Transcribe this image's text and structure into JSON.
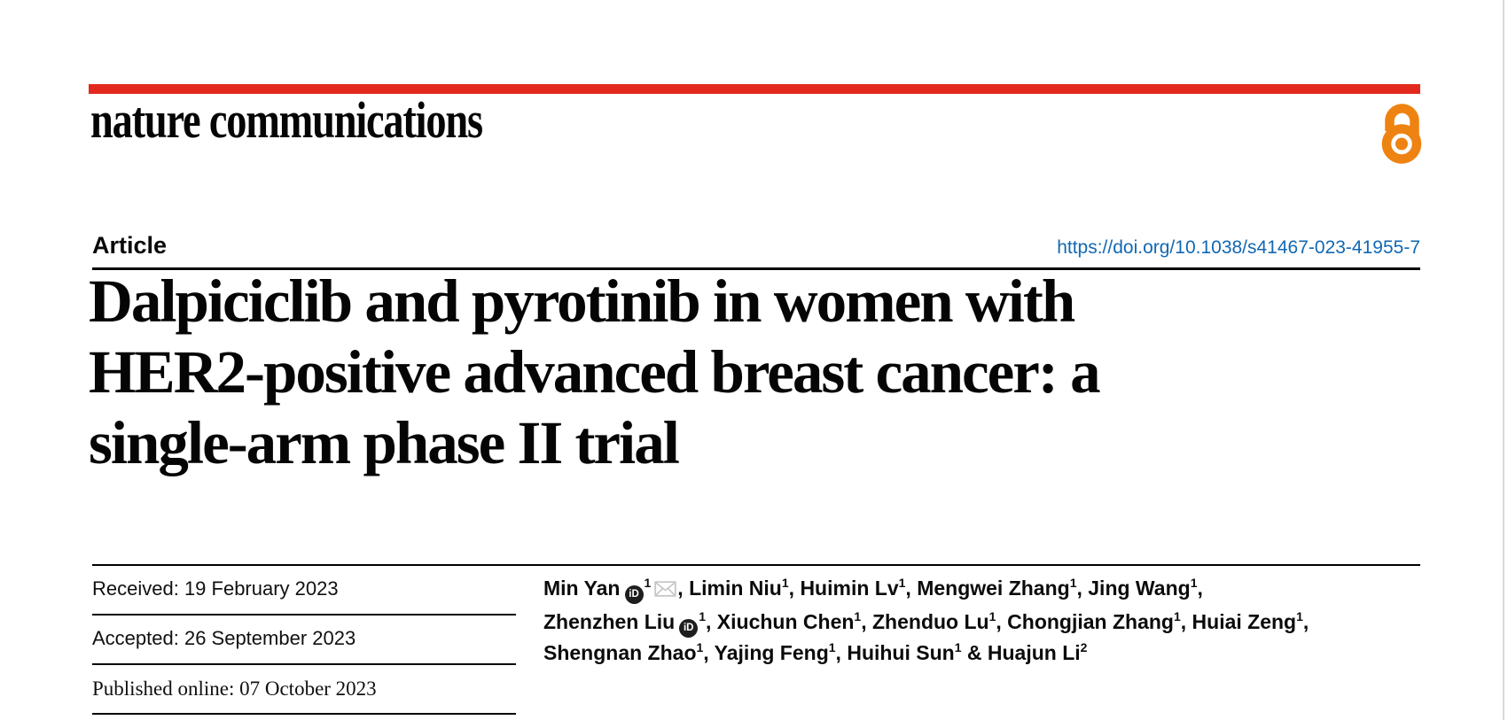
{
  "brand": {
    "logo_text": "nature communications",
    "bar_color": "#E3291D",
    "open_access_color": "#EE8312",
    "open_access_icon": "open-lock-icon"
  },
  "article": {
    "kicker": "Article",
    "doi": "https://doi.org/10.1038/s41467-023-41955-7",
    "doi_color": "#1268B3",
    "title_lines": [
      "Dalpiciclib and pyrotinib in women with",
      "HER2-positive advanced breast cancer: a",
      "single-arm phase II trial"
    ]
  },
  "dates": {
    "received": "Received: 19 February 2023",
    "accepted": "Accepted: 26 September 2023",
    "published": "Published online: 07 October 2023"
  },
  "authors": {
    "icons": {
      "orcid_label": "iD",
      "orcid_name": "orcid-icon",
      "email_name": "envelope-icon"
    },
    "lines": [
      [
        {
          "name": "Min Yan",
          "orcid": true,
          "sup": "1",
          "email": true,
          "sep": ", "
        },
        {
          "name": "Limin Niu",
          "sup": "1",
          "sep": ", "
        },
        {
          "name": "Huimin Lv",
          "sup": "1",
          "sep": ", "
        },
        {
          "name": "Mengwei Zhang",
          "sup": "1",
          "sep": ", "
        },
        {
          "name": "Jing Wang",
          "sup": "1",
          "sep": ","
        }
      ],
      [
        {
          "name": "Zhenzhen Liu",
          "orcid": true,
          "sup": "1",
          "sep": ", "
        },
        {
          "name": "Xiuchun Chen",
          "sup": "1",
          "sep": ", "
        },
        {
          "name": "Zhenduo Lu",
          "sup": "1",
          "sep": ", "
        },
        {
          "name": "Chongjian Zhang",
          "sup": "1",
          "sep": ", "
        },
        {
          "name": "Huiai Zeng",
          "sup": "1",
          "sep": ","
        }
      ],
      [
        {
          "name": "Shengnan Zhao",
          "sup": "1",
          "sep": ", "
        },
        {
          "name": "Yajing Feng",
          "sup": "1",
          "sep": ", "
        },
        {
          "name": "Huihui Sun",
          "sup": "1",
          "sep": " & "
        },
        {
          "name": "Huajun Li",
          "sup": "2",
          "sep": ""
        }
      ]
    ]
  }
}
